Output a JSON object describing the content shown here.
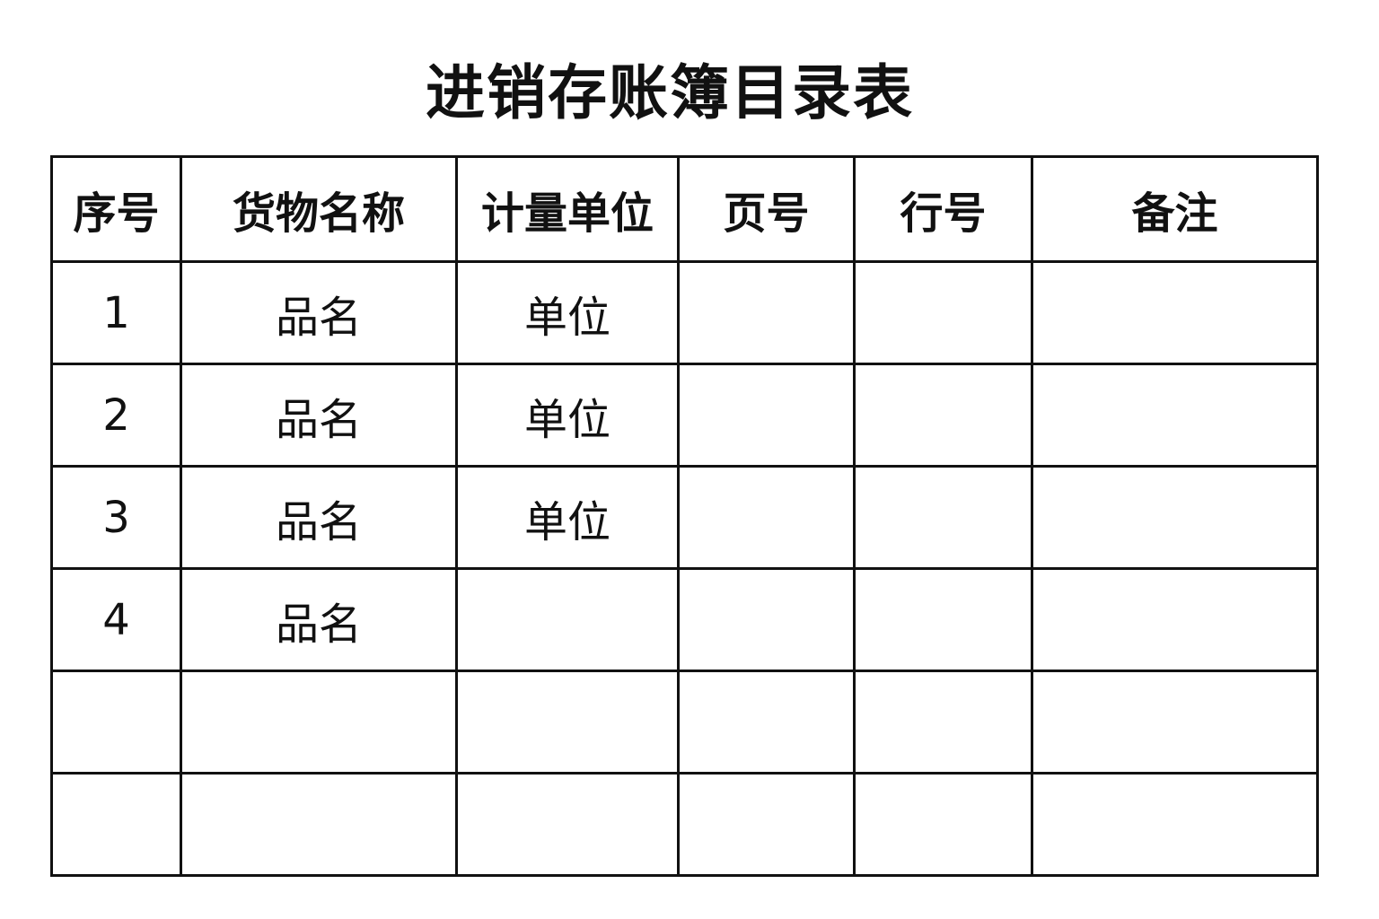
{
  "title": "进销存账簿目录表",
  "table": {
    "headers": [
      "序号",
      "货物名称",
      "计量单位",
      "页号",
      "行号",
      "备注"
    ],
    "rows": [
      [
        "1",
        "品名",
        "单位",
        "",
        "",
        ""
      ],
      [
        "2",
        "品名",
        "单位",
        "",
        "",
        ""
      ],
      [
        "3",
        "品名",
        "单位",
        "",
        "",
        ""
      ],
      [
        "4",
        "品名",
        "",
        "",
        "",
        ""
      ],
      [
        "",
        "",
        "",
        "",
        "",
        ""
      ],
      [
        "",
        "",
        "",
        "",
        "",
        ""
      ]
    ]
  }
}
